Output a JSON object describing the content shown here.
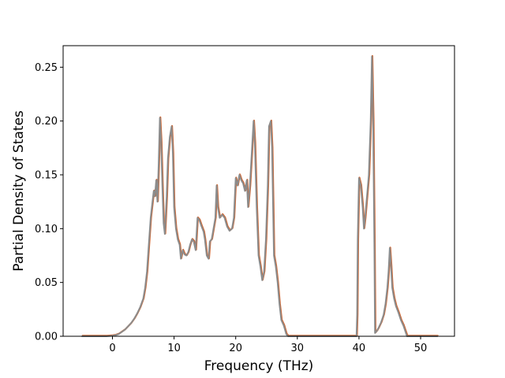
{
  "chart_data": {
    "type": "line",
    "title": "",
    "xlabel": "Frequency (THz)",
    "ylabel": "Partial Density of States",
    "xlim": [
      -8,
      55.5
    ],
    "ylim": [
      0,
      0.27
    ],
    "xticks": [
      0,
      10,
      20,
      30,
      40,
      50
    ],
    "yticks": [
      0.0,
      0.05,
      0.1,
      0.15,
      0.2,
      0.25
    ],
    "xtick_labels": [
      "0",
      "10",
      "20",
      "30",
      "40",
      "50"
    ],
    "ytick_labels": [
      "0.00",
      "0.05",
      "0.10",
      "0.15",
      "0.20",
      "0.25"
    ],
    "grid": false,
    "legend": "none",
    "series": [
      {
        "color": "#8c8c8c",
        "accent_color": "#d4622a",
        "points": [
          [
            -5.0,
            0.0
          ],
          [
            -2.0,
            0.0
          ],
          [
            -1.0,
            0.0
          ],
          [
            0.0,
            0.0005
          ],
          [
            0.5,
            0.001
          ],
          [
            1.0,
            0.002
          ],
          [
            1.5,
            0.004
          ],
          [
            2.0,
            0.006
          ],
          [
            2.5,
            0.009
          ],
          [
            3.0,
            0.012
          ],
          [
            3.5,
            0.016
          ],
          [
            4.0,
            0.021
          ],
          [
            4.5,
            0.027
          ],
          [
            5.0,
            0.035
          ],
          [
            5.3,
            0.045
          ],
          [
            5.6,
            0.06
          ],
          [
            5.9,
            0.085
          ],
          [
            6.2,
            0.11
          ],
          [
            6.5,
            0.125
          ],
          [
            6.7,
            0.135
          ],
          [
            6.9,
            0.13
          ],
          [
            7.1,
            0.145
          ],
          [
            7.3,
            0.125
          ],
          [
            7.5,
            0.16
          ],
          [
            7.7,
            0.203
          ],
          [
            7.9,
            0.18
          ],
          [
            8.1,
            0.14
          ],
          [
            8.3,
            0.105
          ],
          [
            8.5,
            0.095
          ],
          [
            8.8,
            0.13
          ],
          [
            9.0,
            0.165
          ],
          [
            9.3,
            0.185
          ],
          [
            9.6,
            0.195
          ],
          [
            9.8,
            0.17
          ],
          [
            10.0,
            0.12
          ],
          [
            10.3,
            0.1
          ],
          [
            10.6,
            0.09
          ],
          [
            10.9,
            0.085
          ],
          [
            11.1,
            0.072
          ],
          [
            11.4,
            0.08
          ],
          [
            11.7,
            0.076
          ],
          [
            12.0,
            0.075
          ],
          [
            12.3,
            0.078
          ],
          [
            12.6,
            0.085
          ],
          [
            12.9,
            0.09
          ],
          [
            13.2,
            0.088
          ],
          [
            13.5,
            0.08
          ],
          [
            13.8,
            0.11
          ],
          [
            14.1,
            0.108
          ],
          [
            14.4,
            0.103
          ],
          [
            14.8,
            0.097
          ],
          [
            15.0,
            0.09
          ],
          [
            15.3,
            0.075
          ],
          [
            15.6,
            0.072
          ],
          [
            15.8,
            0.088
          ],
          [
            16.1,
            0.09
          ],
          [
            16.4,
            0.1
          ],
          [
            16.7,
            0.11
          ],
          [
            16.9,
            0.14
          ],
          [
            17.1,
            0.12
          ],
          [
            17.4,
            0.11
          ],
          [
            17.8,
            0.113
          ],
          [
            18.2,
            0.11
          ],
          [
            18.6,
            0.102
          ],
          [
            19.0,
            0.098
          ],
          [
            19.4,
            0.1
          ],
          [
            19.7,
            0.11
          ],
          [
            20.0,
            0.147
          ],
          [
            20.3,
            0.14
          ],
          [
            20.6,
            0.15
          ],
          [
            20.9,
            0.145
          ],
          [
            21.2,
            0.142
          ],
          [
            21.5,
            0.135
          ],
          [
            21.8,
            0.145
          ],
          [
            22.0,
            0.12
          ],
          [
            22.3,
            0.14
          ],
          [
            22.6,
            0.17
          ],
          [
            22.9,
            0.2
          ],
          [
            23.1,
            0.18
          ],
          [
            23.4,
            0.12
          ],
          [
            23.7,
            0.075
          ],
          [
            24.0,
            0.065
          ],
          [
            24.3,
            0.052
          ],
          [
            24.6,
            0.06
          ],
          [
            24.9,
            0.09
          ],
          [
            25.2,
            0.14
          ],
          [
            25.4,
            0.195
          ],
          [
            25.7,
            0.2
          ],
          [
            25.9,
            0.175
          ],
          [
            26.2,
            0.075
          ],
          [
            26.5,
            0.065
          ],
          [
            26.8,
            0.05
          ],
          [
            27.1,
            0.03
          ],
          [
            27.4,
            0.015
          ],
          [
            27.8,
            0.01
          ],
          [
            28.2,
            0.002
          ],
          [
            28.5,
            0.0
          ],
          [
            30.0,
            0.0
          ],
          [
            35.0,
            0.0
          ],
          [
            39.6,
            0.0
          ],
          [
            39.7,
            0.02
          ],
          [
            39.8,
            0.09
          ],
          [
            40.0,
            0.147
          ],
          [
            40.3,
            0.14
          ],
          [
            40.6,
            0.12
          ],
          [
            40.8,
            0.1
          ],
          [
            41.0,
            0.11
          ],
          [
            41.3,
            0.13
          ],
          [
            41.6,
            0.15
          ],
          [
            41.9,
            0.2
          ],
          [
            42.1,
            0.26
          ],
          [
            42.3,
            0.2
          ],
          [
            42.5,
            0.08
          ],
          [
            42.6,
            0.003
          ],
          [
            42.9,
            0.005
          ],
          [
            43.2,
            0.008
          ],
          [
            43.6,
            0.013
          ],
          [
            44.0,
            0.02
          ],
          [
            44.3,
            0.03
          ],
          [
            44.6,
            0.045
          ],
          [
            44.8,
            0.06
          ],
          [
            45.0,
            0.082
          ],
          [
            45.2,
            0.065
          ],
          [
            45.4,
            0.045
          ],
          [
            45.7,
            0.035
          ],
          [
            46.0,
            0.028
          ],
          [
            46.4,
            0.022
          ],
          [
            46.8,
            0.015
          ],
          [
            47.2,
            0.01
          ],
          [
            47.5,
            0.005
          ],
          [
            47.8,
            0.0
          ],
          [
            50.0,
            0.0
          ],
          [
            52.8,
            0.0
          ]
        ]
      }
    ]
  }
}
